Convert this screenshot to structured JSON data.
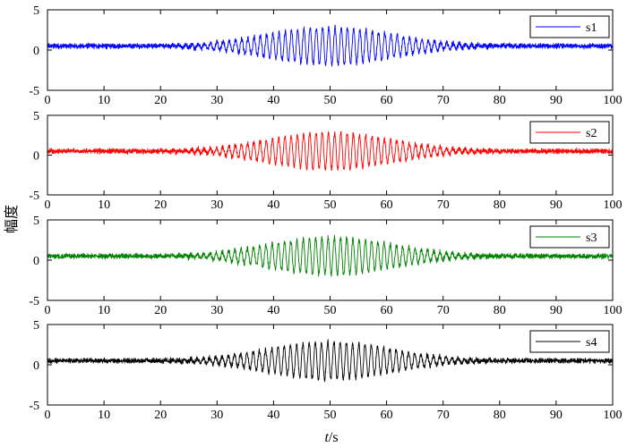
{
  "chart_data": {
    "type": "line",
    "xlabel_italic": "t",
    "xlabel_rest": "/s",
    "ylabel": "幅度",
    "xlim": [
      0,
      100
    ],
    "ylim": [
      -5,
      5
    ],
    "xticks": [
      0,
      10,
      20,
      30,
      40,
      50,
      60,
      70,
      80,
      90,
      100
    ],
    "yticks": [
      -5,
      0,
      5
    ],
    "legend_position": "top-right",
    "grid": false,
    "signal_model": {
      "baseline": 0.5,
      "background_noise_amplitude": 0.25,
      "burst_center": 50,
      "burst_peak_amplitude": 2.3,
      "burst_half_width": 20,
      "oscillation_period": 1.1
    },
    "series": [
      {
        "name": "s1",
        "color": "#0000ff"
      },
      {
        "name": "s2",
        "color": "#ff0000"
      },
      {
        "name": "s3",
        "color": "#008000"
      },
      {
        "name": "s4",
        "color": "#000000"
      }
    ]
  }
}
